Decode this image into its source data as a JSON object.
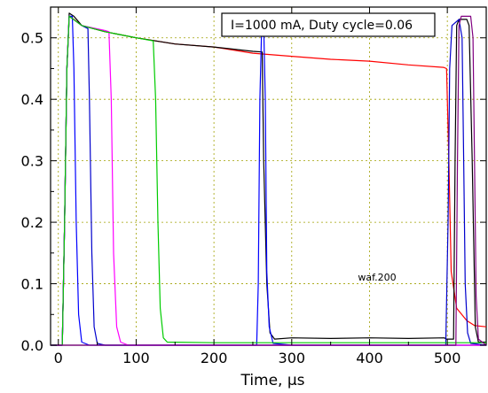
{
  "chart_data": {
    "type": "line",
    "title": "",
    "xlabel": "Time, μs",
    "ylabel": "",
    "xlim": [
      -10,
      550
    ],
    "ylim": [
      0,
      0.55
    ],
    "grid": true,
    "annotation": "I=1000 mA, Duty cycle=0.06",
    "note": "waf.200",
    "x_ticks": [
      "0",
      "100",
      "200",
      "300",
      "400",
      "500"
    ],
    "y_ticks": [
      "0.0",
      "0.1",
      "0.2",
      "0.3",
      "0.4",
      "0.5"
    ],
    "x_tick_values": [
      0,
      100,
      200,
      300,
      400,
      500
    ],
    "y_tick_values": [
      0.0,
      0.1,
      0.2,
      0.3,
      0.4,
      0.5
    ],
    "series": [
      {
        "color": "#ff0000",
        "points": [
          [
            -10,
            0
          ],
          [
            5,
            0
          ],
          [
            8,
            0.2
          ],
          [
            11,
            0.45
          ],
          [
            14,
            0.535
          ],
          [
            20,
            0.53
          ],
          [
            30,
            0.52
          ],
          [
            60,
            0.51
          ],
          [
            100,
            0.5
          ],
          [
            150,
            0.49
          ],
          [
            200,
            0.485
          ],
          [
            250,
            0.475
          ],
          [
            300,
            0.47
          ],
          [
            350,
            0.465
          ],
          [
            400,
            0.462
          ],
          [
            450,
            0.456
          ],
          [
            495,
            0.452
          ],
          [
            499,
            0.45
          ],
          [
            502,
            0.3
          ],
          [
            505,
            0.12
          ],
          [
            512,
            0.06
          ],
          [
            525,
            0.04
          ],
          [
            535,
            0.032
          ],
          [
            550,
            0.03
          ]
        ]
      },
      {
        "color": "#000000",
        "points": [
          [
            -10,
            0
          ],
          [
            5,
            0
          ],
          [
            8,
            0.2
          ],
          [
            11,
            0.45
          ],
          [
            14,
            0.54
          ],
          [
            20,
            0.535
          ],
          [
            30,
            0.52
          ],
          [
            60,
            0.51
          ],
          [
            100,
            0.5
          ],
          [
            150,
            0.49
          ],
          [
            200,
            0.485
          ],
          [
            250,
            0.478
          ],
          [
            262,
            0.477
          ],
          [
            264,
            0.3
          ],
          [
            268,
            0.1
          ],
          [
            272,
            0.02
          ],
          [
            278,
            0.01
          ],
          [
            300,
            0.012
          ],
          [
            350,
            0.011
          ],
          [
            400,
            0.012
          ],
          [
            450,
            0.011
          ],
          [
            496,
            0.012
          ],
          [
            499,
            0.01
          ],
          [
            508,
            0.01
          ],
          [
            510,
            0.3
          ],
          [
            512,
            0.52
          ],
          [
            515,
            0.53
          ],
          [
            525,
            0.53
          ],
          [
            528,
            0.52
          ],
          [
            532,
            0.3
          ],
          [
            536,
            0.03
          ],
          [
            540,
            0.005
          ],
          [
            550,
            0.005
          ]
        ]
      },
      {
        "color": "#0000ff",
        "points": [
          [
            -10,
            0
          ],
          [
            5,
            0
          ],
          [
            8,
            0.2
          ],
          [
            11,
            0.45
          ],
          [
            14,
            0.535
          ],
          [
            18,
            0.535
          ],
          [
            20,
            0.45
          ],
          [
            23,
            0.2
          ],
          [
            26,
            0.05
          ],
          [
            30,
            0.005
          ],
          [
            40,
            0
          ],
          [
            255,
            0
          ],
          [
            257,
            0.1
          ],
          [
            259,
            0.4
          ],
          [
            261,
            0.5
          ],
          [
            264,
            0.52
          ],
          [
            266,
            0.4
          ],
          [
            268,
            0.12
          ],
          [
            271,
            0.03
          ],
          [
            276,
            0.003
          ],
          [
            300,
            0
          ],
          [
            510,
            0
          ],
          [
            550,
            0
          ]
        ]
      },
      {
        "color": "#0000cc",
        "points": [
          [
            -10,
            0
          ],
          [
            5,
            0
          ],
          [
            8,
            0.2
          ],
          [
            11,
            0.45
          ],
          [
            14,
            0.535
          ],
          [
            30,
            0.52
          ],
          [
            38,
            0.515
          ],
          [
            40,
            0.4
          ],
          [
            43,
            0.15
          ],
          [
            46,
            0.03
          ],
          [
            50,
            0.003
          ],
          [
            60,
            0
          ],
          [
            498,
            0
          ],
          [
            501,
            0.2
          ],
          [
            503,
            0.45
          ],
          [
            506,
            0.52
          ],
          [
            515,
            0.53
          ],
          [
            519,
            0.5
          ],
          [
            521,
            0.3
          ],
          [
            523,
            0.1
          ],
          [
            526,
            0.02
          ],
          [
            530,
            0.003
          ],
          [
            550,
            0
          ]
        ]
      },
      {
        "color": "#ff00ff",
        "points": [
          [
            -10,
            0
          ],
          [
            5,
            0
          ],
          [
            8,
            0.2
          ],
          [
            11,
            0.45
          ],
          [
            14,
            0.535
          ],
          [
            30,
            0.52
          ],
          [
            60,
            0.512
          ],
          [
            65,
            0.51
          ],
          [
            68,
            0.4
          ],
          [
            71,
            0.15
          ],
          [
            75,
            0.03
          ],
          [
            80,
            0.005
          ],
          [
            90,
            0
          ],
          [
            550,
            0
          ]
        ]
      },
      {
        "color": "#00cc00",
        "points": [
          [
            -10,
            0
          ],
          [
            5,
            0
          ],
          [
            8,
            0.2
          ],
          [
            11,
            0.45
          ],
          [
            14,
            0.535
          ],
          [
            30,
            0.52
          ],
          [
            60,
            0.51
          ],
          [
            100,
            0.5
          ],
          [
            122,
            0.495
          ],
          [
            125,
            0.4
          ],
          [
            128,
            0.2
          ],
          [
            131,
            0.06
          ],
          [
            135,
            0.012
          ],
          [
            140,
            0.005
          ],
          [
            200,
            0.004
          ],
          [
            300,
            0.004
          ],
          [
            400,
            0.004
          ],
          [
            550,
            0.004
          ]
        ]
      },
      {
        "color": "#800080",
        "points": [
          [
            -10,
            0
          ],
          [
            5,
            0
          ],
          [
            10,
            0
          ],
          [
            13,
            0
          ],
          [
            300,
            0
          ],
          [
            500,
            0
          ],
          [
            511,
            0
          ],
          [
            513,
            0.3
          ],
          [
            515,
            0.52
          ],
          [
            518,
            0.535
          ],
          [
            530,
            0.535
          ],
          [
            533,
            0.5
          ],
          [
            535,
            0.3
          ],
          [
            537,
            0.08
          ],
          [
            540,
            0.01
          ],
          [
            550,
            0
          ]
        ]
      }
    ]
  }
}
